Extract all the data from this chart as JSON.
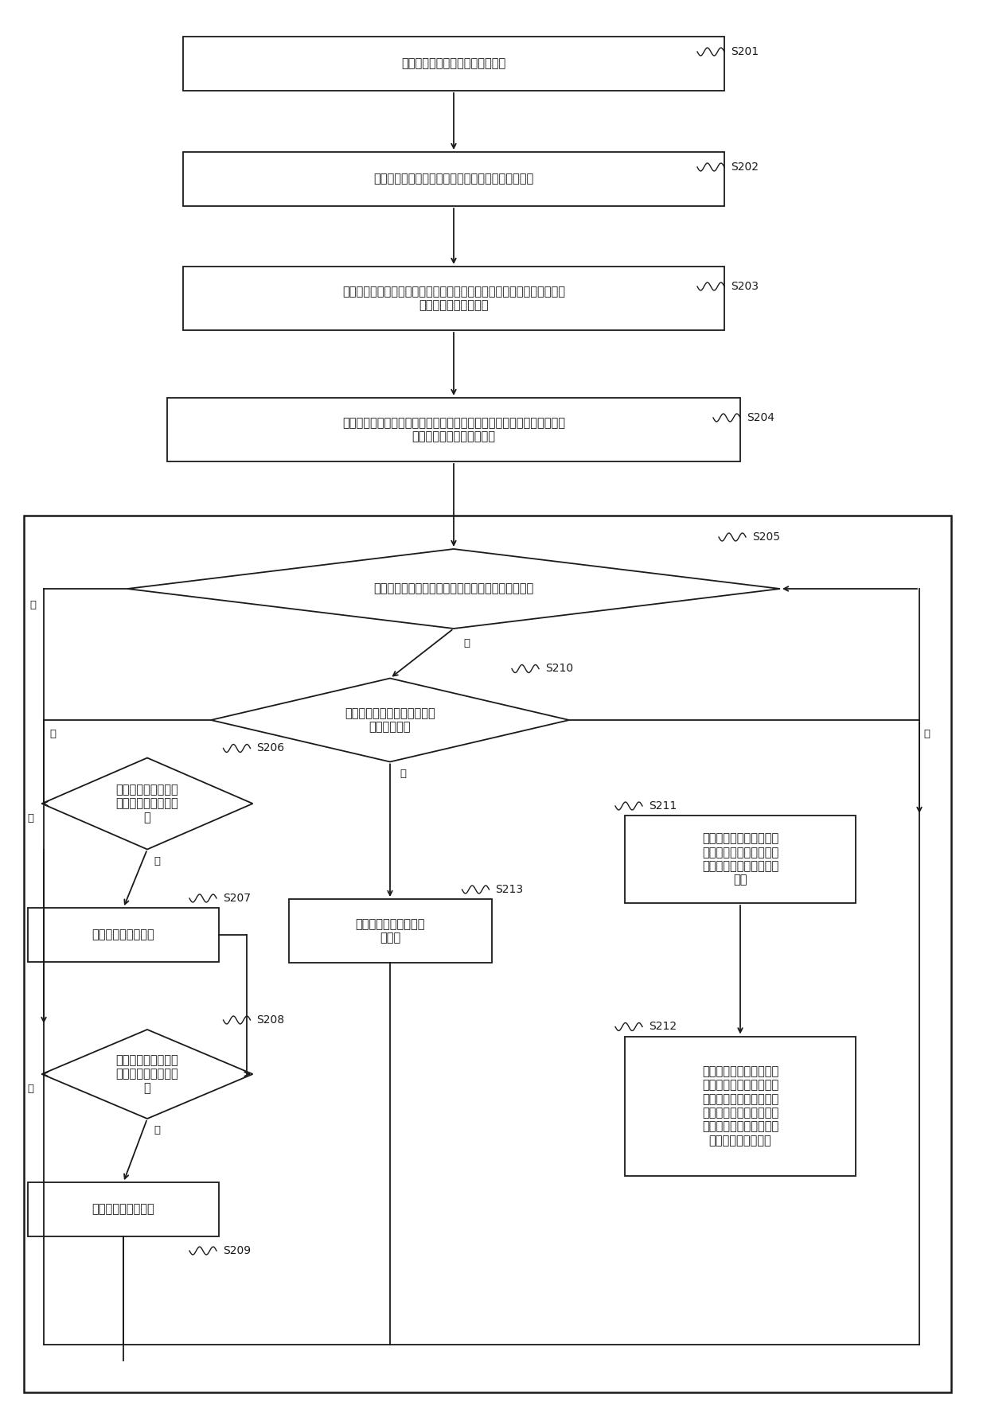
{
  "bg_color": "#ffffff",
  "line_color": "#1a1a1a",
  "text_color": "#1a1a1a",
  "font_size": 10.5,
  "small_font": 9.5,
  "lw": 1.3,
  "nodes": {
    "S201": {
      "text": "开启业务流量采集及统计秒级任务"
    },
    "S202": {
      "text": "在第一时刻开始获取业务流点的收发包个数及字节数"
    },
    "S203": {
      "text": "在第二时刻将获取到的所述业务流点的收发包个数及字节数进行计算得到\n业务流点收发数据速率"
    },
    "S204": {
      "text": "利用所述业务端口流点收发数据速率计算所有业务流点利用率总和以及各\n个流点占用配置带宽利用率"
    },
    "S205": {
      "text": "判断所有业务流点利用率总和小于等于第一预设阈值"
    },
    "S210": {
      "text": "判断业务流点所在端口是否为\n手动聚合端口"
    },
    "S206": {
      "text": "判断流点带宽占用率\n是否大于第二预设阈\n值"
    },
    "S207": {
      "text": "自动增大流点限速值"
    },
    "S208": {
      "text": "判断流点带宽占用率\n是否小于第三预设阈\n值"
    },
    "S209": {
      "text": "自动减小流点限速值"
    },
    "S213": {
      "text": "降低预定优先级业务流\n点带宽"
    },
    "S211": {
      "text": "若业务流点所在端口为手\n动聚合端口且存在空闲端\n口，则增加手动聚合端口\n成员"
    },
    "S212": {
      "text": "当所述手动聚合端口总流\n点利用率小于第三预设阈\n值时，则删减所述手动聚\n合端口成员直至所述手动\n聚合端口总流点利用率小\n于等于第四预设阈值"
    }
  }
}
